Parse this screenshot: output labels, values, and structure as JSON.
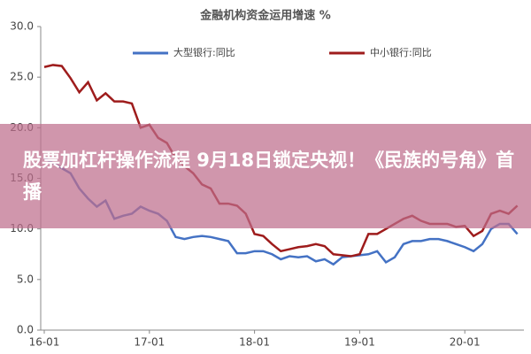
{
  "chart_data": {
    "type": "line",
    "title": "金融机构资金运用增速 %",
    "categories": [
      "16-01",
      null,
      null,
      null,
      null,
      null,
      null,
      null,
      null,
      null,
      null,
      null,
      "17-01",
      null,
      null,
      null,
      null,
      null,
      null,
      null,
      null,
      null,
      null,
      null,
      "18-01",
      null,
      null,
      null,
      null,
      null,
      null,
      null,
      null,
      null,
      null,
      null,
      "19-01",
      null,
      null,
      null,
      null,
      null,
      null,
      null,
      null,
      null,
      null,
      null,
      "20-01",
      null,
      null,
      null,
      null,
      null,
      null
    ],
    "series": [
      {
        "name": "大型银行:同比",
        "color": "#4472c4",
        "values": [
          17.0,
          16.5,
          16.0,
          15.5,
          14.0,
          13.0,
          12.2,
          12.8,
          11.0,
          11.3,
          11.5,
          12.2,
          11.8,
          11.5,
          10.8,
          9.2,
          9.0,
          9.2,
          9.3,
          9.2,
          9.0,
          8.8,
          7.6,
          7.6,
          7.8,
          7.8,
          7.5,
          7.0,
          7.3,
          7.2,
          7.3,
          6.8,
          7.0,
          6.5,
          7.2,
          7.3,
          7.4,
          7.5,
          7.8,
          6.7,
          7.2,
          8.5,
          8.8,
          8.8,
          9.0,
          9.0,
          8.8,
          8.5,
          8.2,
          7.8,
          8.5,
          10.0,
          10.5,
          10.5,
          9.5
        ]
      },
      {
        "name": "中小银行:同比",
        "color": "#9e1c1c",
        "values": [
          26.0,
          26.2,
          26.1,
          24.9,
          23.5,
          24.5,
          22.7,
          23.4,
          22.6,
          22.6,
          22.4,
          20.0,
          20.3,
          19.0,
          18.5,
          17.0,
          16.2,
          15.5,
          14.4,
          14.0,
          12.5,
          12.5,
          12.3,
          11.5,
          9.5,
          9.3,
          8.5,
          7.8,
          8.0,
          8.2,
          8.3,
          8.5,
          8.3,
          7.5,
          7.4,
          7.3,
          7.5,
          9.5,
          9.5,
          10.0,
          10.5,
          11.0,
          11.3,
          10.8,
          10.5,
          10.5,
          10.5,
          10.2,
          10.3,
          9.3,
          9.8,
          11.5,
          11.8,
          11.5,
          12.3
        ]
      }
    ],
    "ylim": [
      0,
      30
    ],
    "yticks": [
      {
        "value": 0,
        "label": "0.0"
      },
      {
        "value": 5,
        "label": "5.0"
      },
      {
        "value": 10,
        "label": "10.0"
      },
      {
        "value": 15,
        "label": "15.0"
      },
      {
        "value": 20,
        "label": "20.0"
      },
      {
        "value": 25,
        "label": "25.0"
      },
      {
        "value": 30,
        "label": "30.0"
      }
    ],
    "grid": false
  },
  "overlay": {
    "headline": "股票加杠杆操作流程 9月18日锁定央视！《民族的号角》首播"
  }
}
